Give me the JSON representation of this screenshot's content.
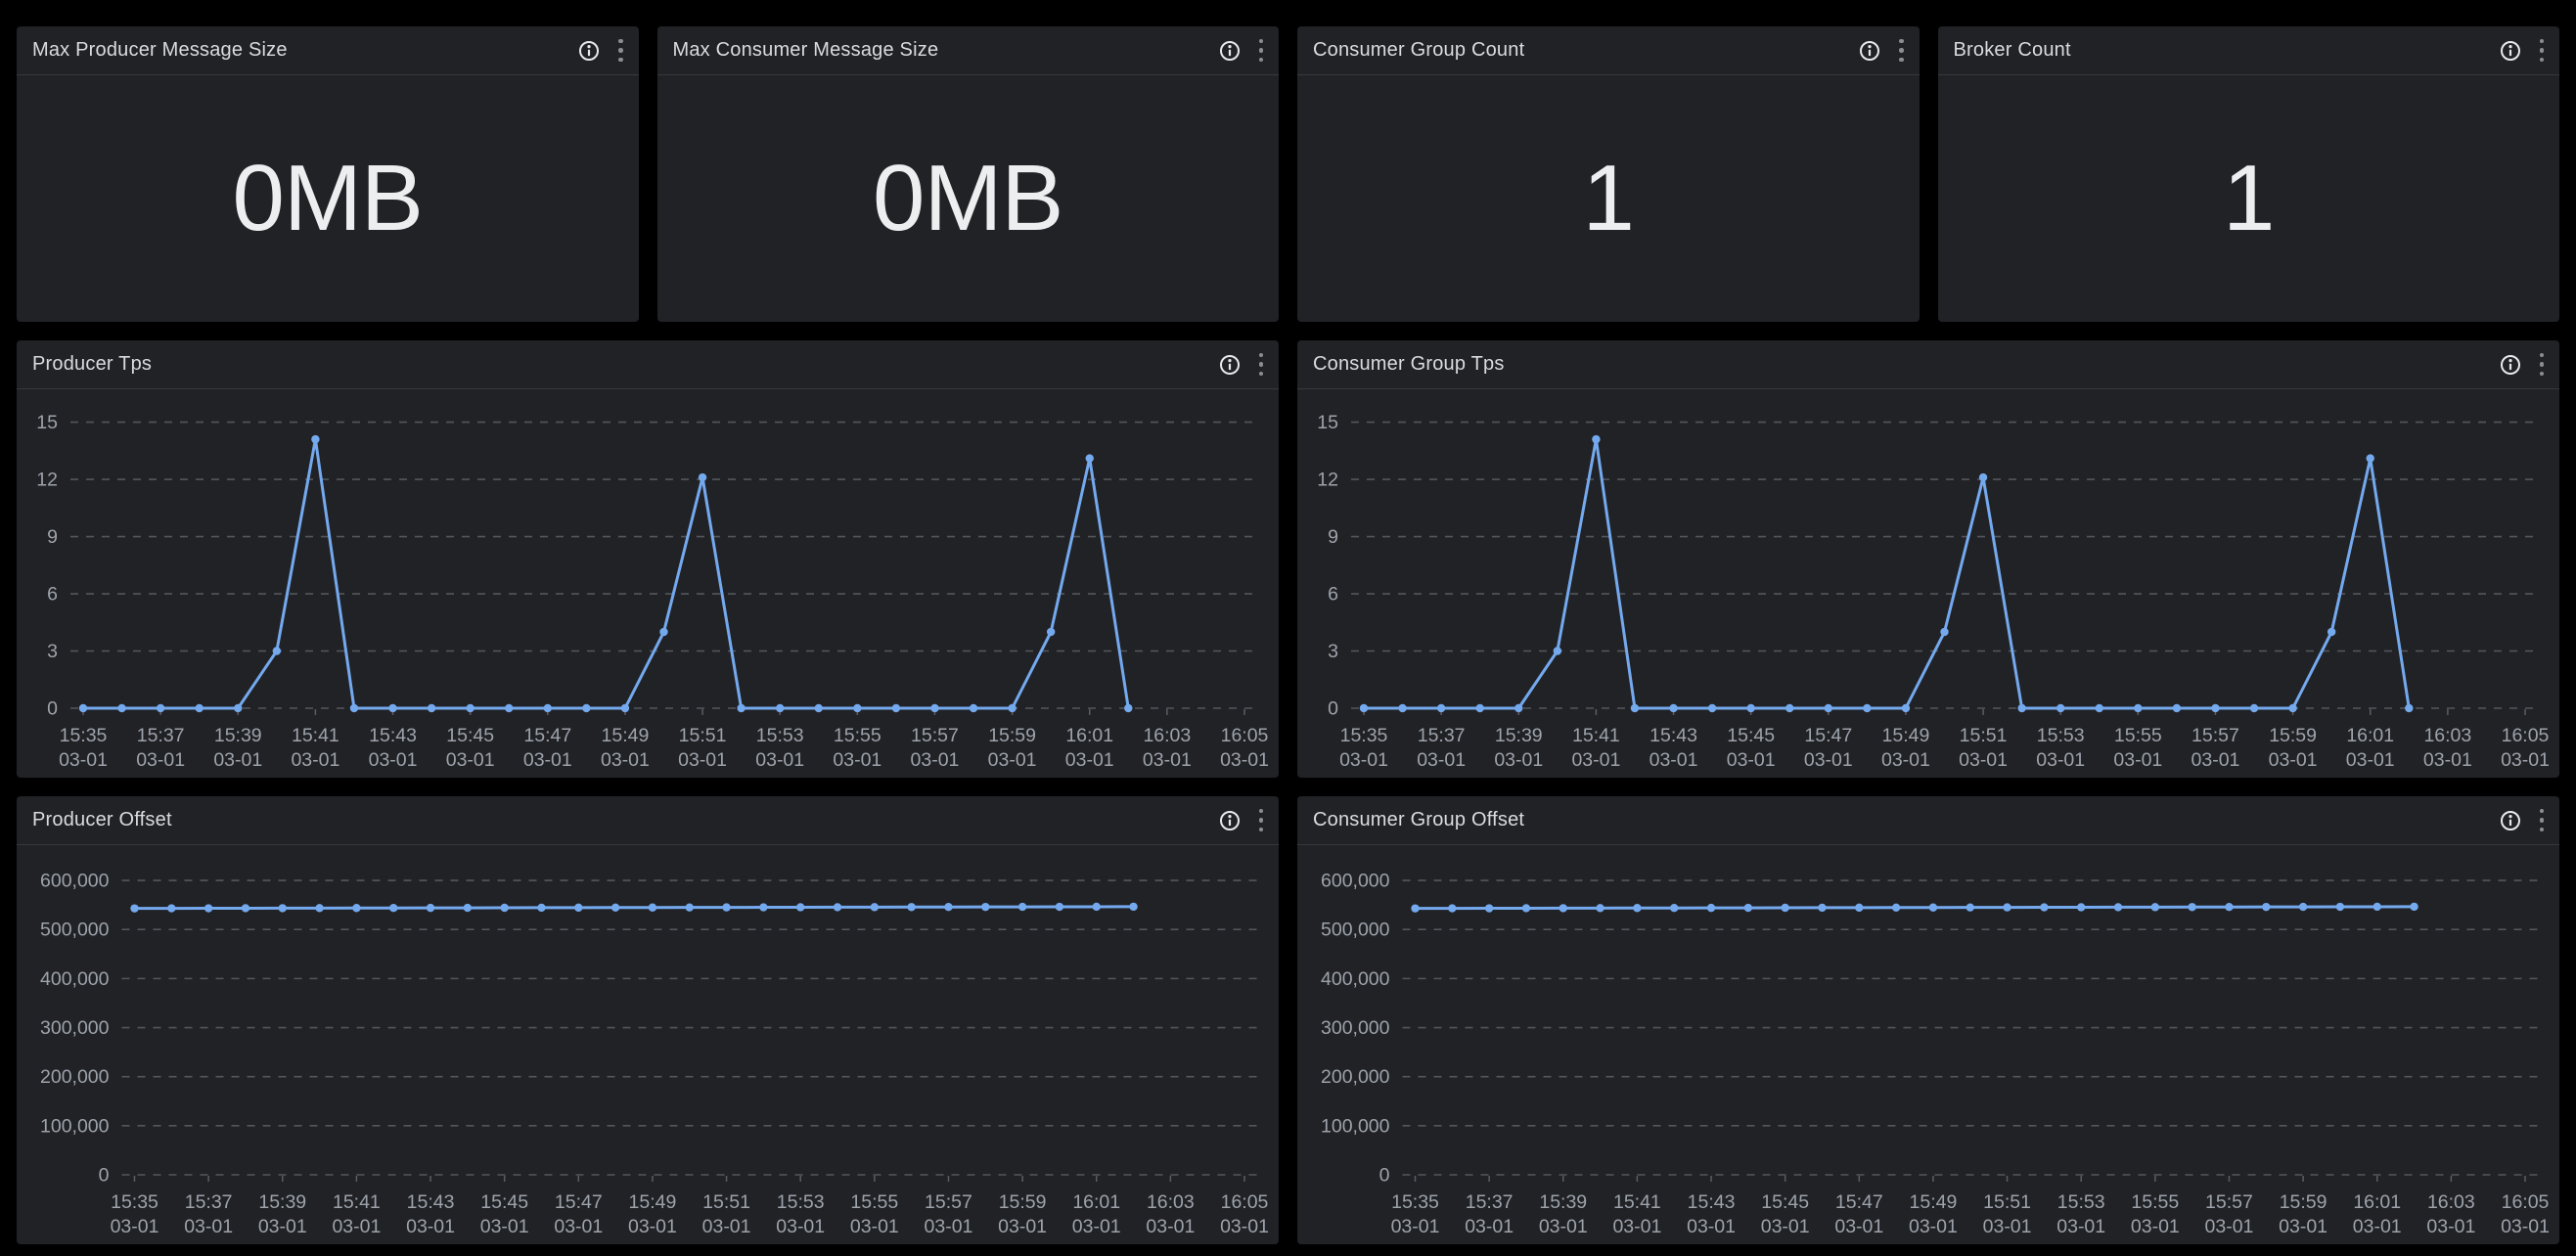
{
  "colors": {
    "page_bg": "#000000",
    "panel_bg": "#212226",
    "panel_divider": "#36383c",
    "title_text": "#dadbdd",
    "stat_text": "#eceef0",
    "axis_text": "#9da3ab",
    "gridline": "#53565b",
    "tick_mark": "#5a5d63",
    "series_line": "#74a9ee",
    "point_fill": "#74a9ee",
    "info_icon": "#e8e9eb",
    "kebab_icon": "#8b8d91"
  },
  "stat_panels": [
    {
      "title": "Max Producer Message Size",
      "value": "0MB"
    },
    {
      "title": "Max Consumer Message Size",
      "value": "0MB"
    },
    {
      "title": "Consumer Group Count",
      "value": "1"
    },
    {
      "title": "Broker Count",
      "value": "1"
    }
  ],
  "chart_data": [
    {
      "title": "Producer Tps",
      "type": "line",
      "legend": "none",
      "grid": "dashed",
      "x_date_label": "03-01",
      "x_tick_labels": [
        "15:35",
        "15:37",
        "15:39",
        "15:41",
        "15:43",
        "15:45",
        "15:47",
        "15:49",
        "15:51",
        "15:53",
        "15:55",
        "15:57",
        "15:59",
        "16:01",
        "16:03",
        "16:05"
      ],
      "x_tick_every_min": 2,
      "x_total_minutes": 30,
      "x_minutes": [
        0,
        1,
        2,
        3,
        4,
        5,
        6,
        7,
        8,
        9,
        10,
        11,
        12,
        13,
        14,
        15,
        16,
        17,
        18,
        19,
        20,
        21,
        22,
        23,
        24,
        25,
        26,
        27
      ],
      "values": [
        0,
        0,
        0,
        0,
        0,
        3,
        14.1,
        0,
        0,
        0,
        0,
        0,
        0,
        0,
        0,
        4,
        12.1,
        0,
        0,
        0,
        0,
        0,
        0,
        0,
        0,
        4,
        13.1,
        0
      ],
      "y_ticks": [
        0,
        3,
        6,
        9,
        12,
        15
      ],
      "y_tick_labels": [
        "0",
        "3",
        "6",
        "9",
        "12",
        "15"
      ],
      "y_max": 15.9,
      "ylim": [
        0,
        15
      ]
    },
    {
      "title": "Consumer Group Tps",
      "type": "line",
      "legend": "none",
      "grid": "dashed",
      "x_date_label": "03-01",
      "x_tick_labels": [
        "15:35",
        "15:37",
        "15:39",
        "15:41",
        "15:43",
        "15:45",
        "15:47",
        "15:49",
        "15:51",
        "15:53",
        "15:55",
        "15:57",
        "15:59",
        "16:01",
        "16:03",
        "16:05"
      ],
      "x_tick_every_min": 2,
      "x_total_minutes": 30,
      "x_minutes": [
        0,
        1,
        2,
        3,
        4,
        5,
        6,
        7,
        8,
        9,
        10,
        11,
        12,
        13,
        14,
        15,
        16,
        17,
        18,
        19,
        20,
        21,
        22,
        23,
        24,
        25,
        26,
        27
      ],
      "values": [
        0,
        0,
        0,
        0,
        0,
        3,
        14.1,
        0,
        0,
        0,
        0,
        0,
        0,
        0,
        0,
        4,
        12.1,
        0,
        0,
        0,
        0,
        0,
        0,
        0,
        0,
        4,
        13.1,
        0
      ],
      "y_ticks": [
        0,
        3,
        6,
        9,
        12,
        15
      ],
      "y_tick_labels": [
        "0",
        "3",
        "6",
        "9",
        "12",
        "15"
      ],
      "y_max": 15.9,
      "ylim": [
        0,
        15
      ]
    },
    {
      "title": "Producer Offset",
      "type": "line",
      "legend": "none",
      "grid": "dashed",
      "x_date_label": "03-01",
      "x_tick_labels": [
        "15:35",
        "15:37",
        "15:39",
        "15:41",
        "15:43",
        "15:45",
        "15:47",
        "15:49",
        "15:51",
        "15:53",
        "15:55",
        "15:57",
        "15:59",
        "16:01",
        "16:03",
        "16:05"
      ],
      "x_tick_every_min": 2,
      "x_total_minutes": 30,
      "x_minutes": [
        0,
        1,
        2,
        3,
        4,
        5,
        6,
        7,
        8,
        9,
        10,
        11,
        12,
        13,
        14,
        15,
        16,
        17,
        18,
        19,
        20,
        21,
        22,
        23,
        24,
        25,
        26,
        27
      ],
      "values": [
        543000,
        543130,
        543260,
        543390,
        543520,
        543650,
        543780,
        543910,
        544040,
        544170,
        544300,
        544430,
        544560,
        544690,
        544820,
        544950,
        545080,
        545210,
        545340,
        545470,
        545600,
        545730,
        545860,
        545990,
        546120,
        546250,
        546380,
        546500
      ],
      "y_ticks": [
        0,
        100000,
        200000,
        300000,
        400000,
        500000,
        600000
      ],
      "y_tick_labels": [
        "0",
        "100,000",
        "200,000",
        "300,000",
        "400,000",
        "500,000",
        "600,000"
      ],
      "y_max": 640000,
      "ylim": [
        0,
        600000
      ]
    },
    {
      "title": "Consumer Group Offset",
      "type": "line",
      "legend": "none",
      "grid": "dashed",
      "x_date_label": "03-01",
      "x_tick_labels": [
        "15:35",
        "15:37",
        "15:39",
        "15:41",
        "15:43",
        "15:45",
        "15:47",
        "15:49",
        "15:51",
        "15:53",
        "15:55",
        "15:57",
        "15:59",
        "16:01",
        "16:03",
        "16:05"
      ],
      "x_tick_every_min": 2,
      "x_total_minutes": 30,
      "x_minutes": [
        0,
        1,
        2,
        3,
        4,
        5,
        6,
        7,
        8,
        9,
        10,
        11,
        12,
        13,
        14,
        15,
        16,
        17,
        18,
        19,
        20,
        21,
        22,
        23,
        24,
        25,
        26,
        27
      ],
      "values": [
        543000,
        543130,
        543260,
        543390,
        543520,
        543650,
        543780,
        543910,
        544040,
        544170,
        544300,
        544430,
        544560,
        544690,
        544820,
        544950,
        545080,
        545210,
        545340,
        545470,
        545600,
        545730,
        545860,
        545990,
        546120,
        546250,
        546380,
        546500
      ],
      "y_ticks": [
        0,
        100000,
        200000,
        300000,
        400000,
        500000,
        600000
      ],
      "y_tick_labels": [
        "0",
        "100,000",
        "200,000",
        "300,000",
        "400,000",
        "500,000",
        "600,000"
      ],
      "y_max": 640000,
      "ylim": [
        0,
        600000
      ]
    }
  ]
}
